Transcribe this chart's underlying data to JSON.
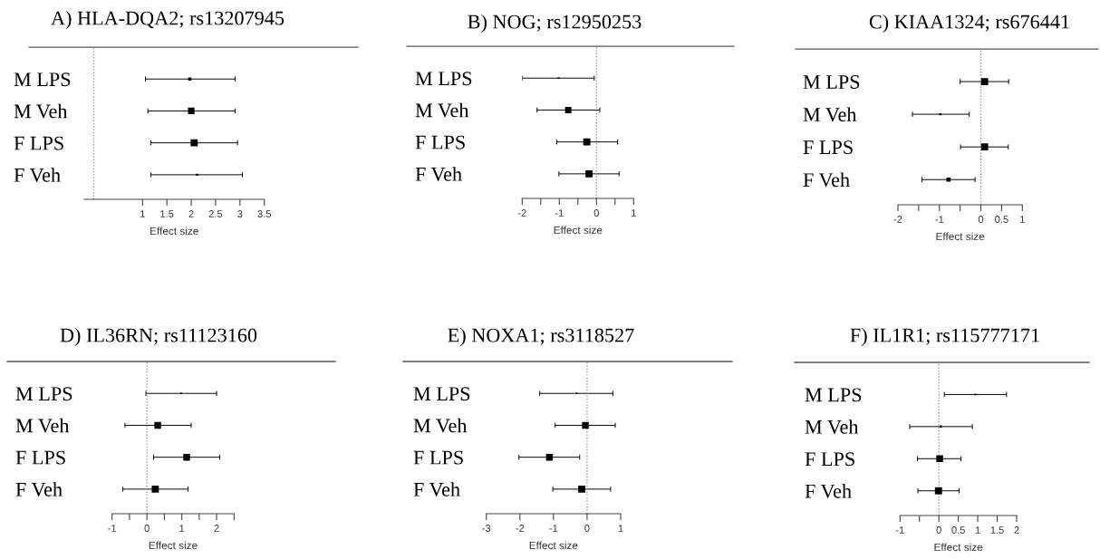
{
  "chart_data": [
    {
      "type": "bubble",
      "title": "A) HLA-DQA2; rs13207945",
      "xlabel": "Effect size",
      "orientation": "horizontal",
      "marker": "square",
      "categories": [
        "M LPS",
        "M Veh",
        "F LPS",
        "F Veh"
      ],
      "color": "#000000",
      "values": [
        1.97,
        2.0,
        2.06,
        2.12
      ],
      "errors": [
        [
          1.06,
          2.9
        ],
        [
          1.11,
          2.9
        ],
        [
          1.17,
          2.95
        ],
        [
          1.17,
          3.05
        ]
      ],
      "sizes": [
        0.2,
        0.85,
        1,
        0.1
      ],
      "xlim": [
        -0.2,
        3.5
      ],
      "xticks": [
        1,
        1.5,
        2,
        2.5,
        3,
        3.5
      ],
      "ref_lines": [
        {
          "axis": "x",
          "value": 0,
          "line_style": "dotted"
        }
      ]
    },
    {
      "type": "bubble",
      "title": "B) NOG; rs12950253",
      "xlabel": "Effect size",
      "orientation": "horizontal",
      "marker": "square",
      "categories": [
        "M LPS",
        "M Veh",
        "F LPS",
        "F Veh"
      ],
      "color": "#000000",
      "values": [
        -1.02,
        -0.76,
        -0.26,
        -0.2
      ],
      "errors": [
        [
          -2.0,
          -0.06
        ],
        [
          -1.6,
          0.09
        ],
        [
          -1.07,
          0.57
        ],
        [
          -1.01,
          0.61
        ]
      ],
      "sizes": [
        0.05,
        0.8,
        1,
        1
      ],
      "xlim": [
        -2,
        1
      ],
      "xticks": [
        -2,
        {
          "value": -1.5,
          "label": null
        },
        -1,
        {
          "value": -0.5,
          "label": null
        },
        0,
        {
          "value": 0.5,
          "label": null
        },
        1
      ],
      "ref_lines": [
        {
          "axis": "x",
          "value": 0,
          "line_style": "dotted"
        }
      ]
    },
    {
      "type": "bubble",
      "title": "C) KIAA1324; rs676441",
      "xlabel": "Effect size",
      "orientation": "horizontal",
      "marker": "square",
      "categories": [
        "M LPS",
        "M Veh",
        "F LPS",
        "F Veh"
      ],
      "color": "#000000",
      "values": [
        0.09,
        -0.98,
        0.09,
        -0.78
      ],
      "errors": [
        [
          -0.5,
          0.67
        ],
        [
          -1.65,
          -0.28
        ],
        [
          -0.49,
          0.66
        ],
        [
          -1.42,
          -0.14
        ]
      ],
      "sizes": [
        1,
        0.1,
        1,
        0.35
      ],
      "xlim": [
        -2,
        1
      ],
      "xticks": [
        -2,
        {
          "value": -1.5,
          "label": null
        },
        -1,
        {
          "value": -0.5,
          "label": null
        },
        0,
        0.5,
        1
      ],
      "ref_lines": [
        {
          "axis": "x",
          "value": 0,
          "line_style": "dotted"
        }
      ]
    },
    {
      "type": "bubble",
      "title": "D) IL36RN; rs11123160",
      "xlabel": "Effect size",
      "orientation": "horizontal",
      "marker": "square",
      "categories": [
        "M LPS",
        "M Veh",
        "F LPS",
        "F Veh"
      ],
      "color": "#000000",
      "values": [
        0.98,
        0.31,
        1.14,
        0.24
      ],
      "errors": [
        [
          -0.03,
          2.0
        ],
        [
          -0.63,
          1.27
        ],
        [
          0.19,
          2.09
        ],
        [
          -0.69,
          1.18
        ]
      ],
      "sizes": [
        0.05,
        0.9,
        0.9,
        1
      ],
      "xlim": [
        -1,
        2.5
      ],
      "xticks": [
        -1,
        {
          "value": -0.5,
          "label": null
        },
        0,
        {
          "value": 0.5,
          "label": null
        },
        1,
        {
          "value": 1.5,
          "label": null
        },
        2,
        {
          "value": 2.5,
          "label": null
        }
      ],
      "ref_lines": [
        {
          "axis": "x",
          "value": 0,
          "line_style": "dotted"
        }
      ]
    },
    {
      "type": "bubble",
      "title": "E) NOXA1; rs3118527",
      "xlabel": "Effect size",
      "orientation": "horizontal",
      "marker": "square",
      "categories": [
        "M LPS",
        "M Veh",
        "F LPS",
        "F Veh"
      ],
      "color": "#000000",
      "values": [
        -0.31,
        -0.05,
        -1.12,
        -0.16
      ],
      "errors": [
        [
          -1.41,
          0.77
        ],
        [
          -0.95,
          0.84
        ],
        [
          -2.03,
          -0.22
        ],
        [
          -1.02,
          0.7
        ]
      ],
      "sizes": [
        0.05,
        0.9,
        0.9,
        1
      ],
      "xlim": [
        -3,
        1
      ],
      "xticks": [
        -3,
        -2,
        -1,
        0,
        1
      ],
      "ref_lines": [
        {
          "axis": "x",
          "value": 0,
          "line_style": "dotted"
        }
      ]
    },
    {
      "type": "bubble",
      "title": "F) IL1R1; rs115777171",
      "xlabel": "Effect size",
      "orientation": "horizontal",
      "marker": "square",
      "categories": [
        "M LPS",
        "M Veh",
        "F LPS",
        "F Veh"
      ],
      "color": "#000000",
      "values": [
        0.94,
        0.05,
        0.02,
        -0.01
      ],
      "errors": [
        [
          0.14,
          1.74
        ],
        [
          -0.75,
          0.86
        ],
        [
          -0.55,
          0.57
        ],
        [
          -0.54,
          0.52
        ]
      ],
      "sizes": [
        0.05,
        0.1,
        0.9,
        1
      ],
      "xlim": [
        -1,
        2
      ],
      "xticks": [
        -1,
        {
          "value": -0.5,
          "label": null
        },
        0,
        0.5,
        1,
        1.5,
        2
      ],
      "ref_lines": [
        {
          "axis": "x",
          "value": 0,
          "line_style": "dotted"
        }
      ]
    }
  ]
}
